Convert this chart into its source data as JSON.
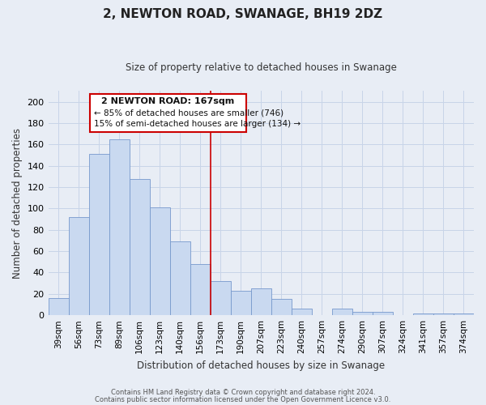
{
  "title": "2, NEWTON ROAD, SWANAGE, BH19 2DZ",
  "subtitle": "Size of property relative to detached houses in Swanage",
  "xlabel": "Distribution of detached houses by size in Swanage",
  "ylabel": "Number of detached properties",
  "categories": [
    "39sqm",
    "56sqm",
    "73sqm",
    "89sqm",
    "106sqm",
    "123sqm",
    "140sqm",
    "156sqm",
    "173sqm",
    "190sqm",
    "207sqm",
    "223sqm",
    "240sqm",
    "257sqm",
    "274sqm",
    "290sqm",
    "307sqm",
    "324sqm",
    "341sqm",
    "357sqm",
    "374sqm"
  ],
  "values": [
    16,
    92,
    151,
    165,
    128,
    101,
    69,
    48,
    32,
    23,
    25,
    15,
    6,
    0,
    6,
    3,
    3,
    0,
    2,
    2,
    2
  ],
  "bar_color": "#c9d9f0",
  "bar_edge_color": "#7799cc",
  "vline_x_index": 8,
  "vline_color": "#cc0000",
  "annotation_title": "2 NEWTON ROAD: 167sqm",
  "annotation_line1": "← 85% of detached houses are smaller (746)",
  "annotation_line2": "15% of semi-detached houses are larger (134) →",
  "annotation_box_color": "#cc0000",
  "ylim": [
    0,
    210
  ],
  "yticks": [
    0,
    20,
    40,
    60,
    80,
    100,
    120,
    140,
    160,
    180,
    200
  ],
  "grid_color": "#c8d4e8",
  "bg_color": "#e8edf5",
  "footer1": "Contains HM Land Registry data © Crown copyright and database right 2024.",
  "footer2": "Contains public sector information licensed under the Open Government Licence v3.0."
}
